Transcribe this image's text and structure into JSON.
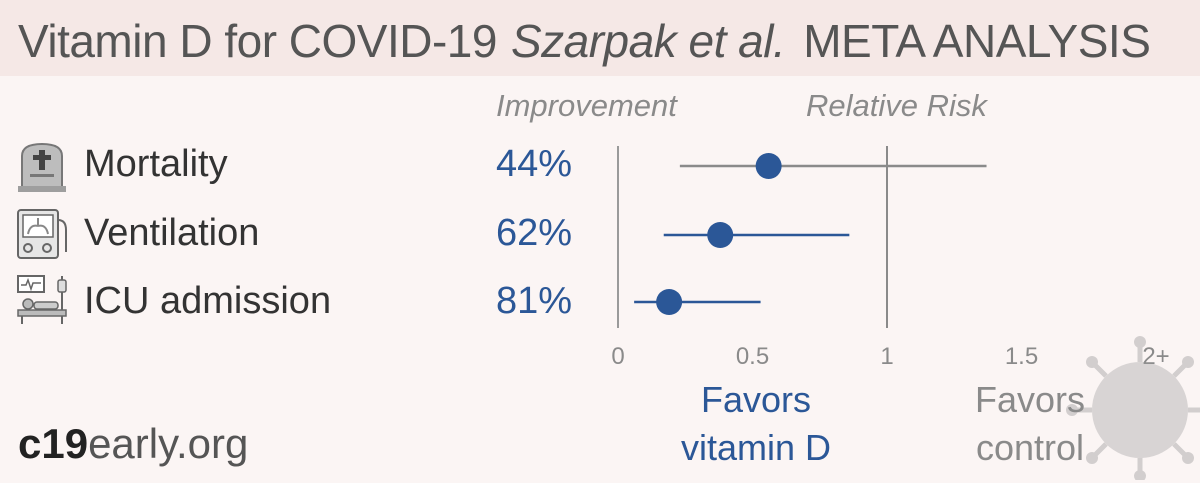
{
  "header": {
    "title_main": "Vitamin D for COVID-19",
    "title_author": "Szarpak et al.",
    "title_kind": "META ANALYSIS"
  },
  "columns": {
    "improvement": "Improvement",
    "relative_risk": "Relative Risk"
  },
  "rows": [
    {
      "label": "Mortality",
      "improvement": "44%",
      "icon": "tombstone-icon"
    },
    {
      "label": "Ventilation",
      "improvement": "62%",
      "icon": "ventilator-icon"
    },
    {
      "label": "ICU admission",
      "improvement": "81%",
      "icon": "icu-bed-icon"
    }
  ],
  "axis": {
    "ticks": [
      {
        "value": 0,
        "label": "0"
      },
      {
        "value": 0.5,
        "label": "0.5"
      },
      {
        "value": 1,
        "label": "1"
      },
      {
        "value": 1.5,
        "label": "1.5"
      },
      {
        "value": 2,
        "label": "2+"
      }
    ]
  },
  "favors": {
    "left_line1": "Favors",
    "left_line2": "vitamin D",
    "right_line1": "Favors",
    "right_line2": "control"
  },
  "brand": {
    "bold": "c19",
    "rest": "early.org"
  },
  "colors": {
    "accent": "#2b5797",
    "gray": "#8a8a8a",
    "background": "#fbf5f4",
    "header_bg": "#f5e8e6"
  },
  "chart_data": {
    "type": "forest",
    "x_scale": "linear",
    "xlim": [
      0,
      2
    ],
    "reference_line": 1,
    "series": [
      {
        "name": "Mortality",
        "estimate": 0.56,
        "ci": [
          0.23,
          1.37
        ]
      },
      {
        "name": "Ventilation",
        "estimate": 0.38,
        "ci": [
          0.17,
          0.86
        ]
      },
      {
        "name": "ICU admission",
        "estimate": 0.19,
        "ci": [
          0.06,
          0.53
        ]
      }
    ]
  }
}
